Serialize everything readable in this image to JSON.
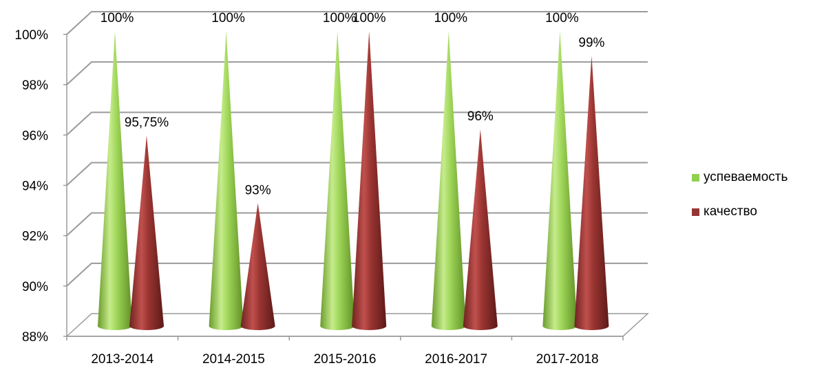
{
  "chart_data": {
    "type": "bar",
    "style": "3d-cone",
    "categories": [
      "2013-2014",
      "2014-2015",
      "2015-2016",
      "2016-2017",
      "2017-2018"
    ],
    "series": [
      {
        "name": "успеваемость",
        "color": "#92d050",
        "values": [
          100,
          100,
          100,
          100,
          100
        ],
        "labels": [
          "100%",
          "100%",
          "100%",
          "100%",
          "100%"
        ]
      },
      {
        "name": "качество",
        "color": "#943634",
        "values": [
          95.75,
          93,
          100,
          96,
          99
        ],
        "labels": [
          "95,75%",
          "93%",
          "100%",
          "96%",
          "99%"
        ]
      }
    ],
    "y_ticks": [
      "88%",
      "90%",
      "92%",
      "94%",
      "96%",
      "98%",
      "100%"
    ],
    "ylim": [
      88,
      100
    ],
    "grid": true,
    "legend_position": "right"
  }
}
